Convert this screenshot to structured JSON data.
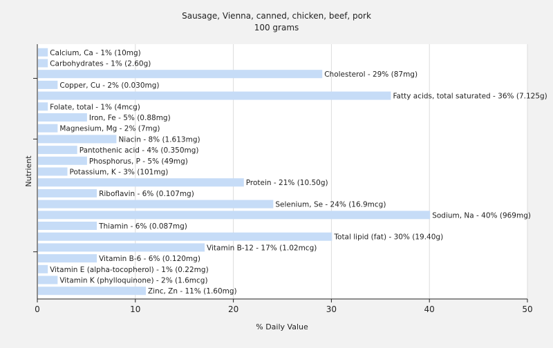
{
  "chart_data": {
    "type": "bar",
    "orientation": "horizontal",
    "title": "Sausage, Vienna, canned, chicken, beef, pork",
    "subtitle": "100 grams",
    "xlabel": "% Daily Value",
    "ylabel": "Nutrient",
    "xlim": [
      0,
      50
    ],
    "xticks": [
      0,
      10,
      20,
      30,
      40,
      50
    ],
    "grid": true,
    "bar_color": "#c6dcf7",
    "grid_color": "#dcdcdc",
    "categories": [
      "Calcium, Ca",
      "Carbohydrates",
      "Cholesterol",
      "Copper, Cu",
      "Fatty acids, total saturated",
      "Folate, total",
      "Iron, Fe",
      "Magnesium, Mg",
      "Niacin",
      "Pantothenic acid",
      "Phosphorus, P",
      "Potassium, K",
      "Protein",
      "Riboflavin",
      "Selenium, Se",
      "Sodium, Na",
      "Thiamin",
      "Total lipid (fat)",
      "Vitamin B-12",
      "Vitamin B-6",
      "Vitamin E (alpha-tocopherol)",
      "Vitamin K (phylloquinone)",
      "Zinc, Zn"
    ],
    "values": [
      1,
      1,
      29,
      2,
      36,
      1,
      5,
      2,
      8,
      4,
      5,
      3,
      21,
      6,
      24,
      40,
      6,
      30,
      17,
      6,
      1,
      2,
      11
    ],
    "labels": [
      "Calcium, Ca - 1% (10mg)",
      "Carbohydrates - 1% (2.60g)",
      "Cholesterol - 29% (87mg)",
      "Copper, Cu - 2% (0.030mg)",
      "Fatty acids, total saturated - 36% (7.125g)",
      "Folate, total - 1% (4mcg)",
      "Iron, Fe - 5% (0.88mg)",
      "Magnesium, Mg - 2% (7mg)",
      "Niacin - 8% (1.613mg)",
      "Pantothenic acid - 4% (0.350mg)",
      "Phosphorus, P - 5% (49mg)",
      "Potassium, K - 3% (101mg)",
      "Protein - 21% (10.50g)",
      "Riboflavin - 6% (0.107mg)",
      "Selenium, Se - 24% (16.9mcg)",
      "Sodium, Na - 40% (969mg)",
      "Thiamin - 6% (0.087mg)",
      "Total lipid (fat) - 30% (19.40g)",
      "Vitamin B-12 - 17% (1.02mcg)",
      "Vitamin B-6 - 6% (0.120mg)",
      "Vitamin E (alpha-tocopherol) - 1% (0.22mg)",
      "Vitamin K (phylloquinone) - 2% (1.6mcg)",
      "Zinc, Zn - 11% (1.60mg)"
    ]
  }
}
